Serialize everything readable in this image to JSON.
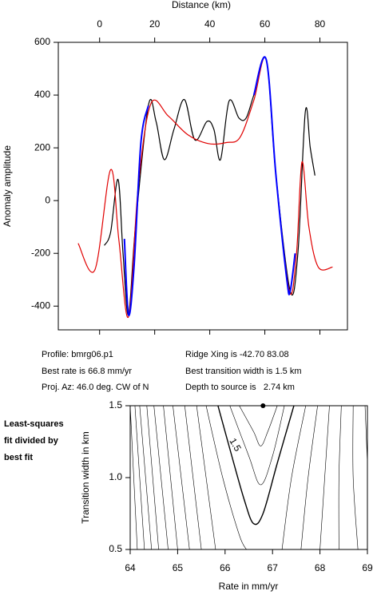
{
  "chart_data": [
    {
      "type": "line",
      "xlabel": "Distance (km)",
      "ylabel": "Anomaly amplitude",
      "xlim": [
        -15,
        90
      ],
      "xticks": [
        0,
        20,
        40,
        60,
        80
      ],
      "ylim": [
        -490,
        600
      ],
      "yticks": [
        -400,
        -200,
        0,
        200,
        400,
        600
      ],
      "series": [
        {
          "color": "#000000",
          "x": [
            1.7,
            4,
            6.7,
            8.5,
            10.5,
            13,
            17.7,
            20.5,
            23.5,
            27,
            30.8,
            34.6,
            39,
            41.5,
            43.9,
            47,
            50.6,
            53.2,
            56,
            60.5,
            64,
            69.2,
            72,
            74.7,
            76.5,
            78.2
          ],
          "values": [
            -170,
            -120,
            80,
            -200,
            -433,
            -100,
            360,
            300,
            155,
            270,
            383,
            230,
            300,
            270,
            155,
            377,
            313,
            313,
            400,
            535,
            100,
            -343,
            -200,
            337,
            200,
            95
          ]
        },
        {
          "color": "#e00000",
          "x": [
            -7.8,
            -1.7,
            4,
            7,
            10.5,
            14,
            18.6,
            25,
            32,
            39.5,
            46,
            51,
            56,
            60.5,
            64,
            68.9,
            71.5,
            73.5,
            76,
            79.4,
            84.6
          ],
          "values": [
            -162,
            -262,
            117,
            -150,
            -440,
            50,
            367,
            320,
            250,
            216,
            220,
            240,
            380,
            535,
            100,
            -343,
            -200,
            147,
            -100,
            -252,
            -252
          ]
        },
        {
          "color": "#0000ff",
          "x": [
            9,
            10.5,
            12.5,
            15,
            17.7,
            null,
            56,
            60.5,
            64,
            68,
            69.2,
            71
          ],
          "values": [
            -145,
            -433,
            -250,
            220,
            360,
            null,
            400,
            535,
            100,
            -300,
            -343,
            -200
          ]
        }
      ]
    },
    {
      "type": "contour",
      "xlabel": "Rate in mm/yr",
      "ylabel": "Transition width in km",
      "xlim": [
        64,
        69
      ],
      "xticks": [
        64,
        65,
        66,
        67,
        68,
        69
      ],
      "ylim": [
        0.5,
        1.5
      ],
      "yticks": [
        0.5,
        {
          "value": 1.0,
          "label": "1.0"
        },
        1.5
      ],
      "best": {
        "x": 66.8,
        "y": 1.5
      },
      "contours": [
        {
          "x": [
            64.0,
            64.15
          ],
          "values": [
            1.5,
            0.5
          ]
        },
        {
          "x": [
            64.1,
            64.3
          ],
          "values": [
            1.5,
            0.5
          ]
        },
        {
          "x": [
            64.2,
            64.45
          ],
          "values": [
            1.5,
            0.5
          ]
        },
        {
          "x": [
            64.35,
            64.6
          ],
          "values": [
            1.5,
            0.5
          ]
        },
        {
          "x": [
            64.5,
            64.8
          ],
          "values": [
            1.5,
            0.5
          ]
        },
        {
          "x": [
            64.7,
            65.0
          ],
          "values": [
            1.5,
            0.5
          ]
        },
        {
          "x": [
            64.9,
            65.25
          ],
          "values": [
            1.5,
            0.5
          ]
        },
        {
          "x": [
            65.15,
            65.5
          ],
          "values": [
            1.5,
            0.5
          ]
        },
        {
          "x": [
            65.4,
            65.8
          ],
          "values": [
            1.5,
            0.5
          ]
        },
        {
          "x": [
            65.6,
            65.95,
            66.3,
            66.45
          ],
          "values": [
            1.5,
            1.0,
            0.6,
            0.5
          ]
        },
        {
          "x": [
            65.85,
            66.1,
            66.4,
            66.6,
            66.8,
            67.1,
            67.45
          ],
          "values": [
            1.5,
            1.2,
            0.85,
            0.68,
            0.75,
            1.1,
            1.5
          ],
          "label": "1.5"
        },
        {
          "x": [
            66.1,
            66.5,
            66.75,
            67.0,
            67.25
          ],
          "values": [
            1.5,
            1.15,
            0.95,
            1.15,
            1.5
          ]
        },
        {
          "x": [
            66.3,
            66.6,
            66.75,
            66.9,
            67.1
          ],
          "values": [
            1.5,
            1.32,
            1.22,
            1.32,
            1.5
          ]
        },
        {
          "x": [
            67.7,
            67.4,
            67.2
          ],
          "values": [
            1.5,
            1.0,
            0.5
          ]
        },
        {
          "x": [
            67.95,
            67.75,
            67.6
          ],
          "values": [
            1.5,
            1.0,
            0.5
          ]
        },
        {
          "x": [
            68.2,
            68.1,
            68.0
          ],
          "values": [
            1.5,
            1.0,
            0.5
          ]
        },
        {
          "x": [
            68.45,
            68.4,
            68.4
          ],
          "values": [
            1.5,
            1.0,
            0.5
          ]
        },
        {
          "x": [
            68.7,
            68.7,
            68.8
          ],
          "values": [
            1.5,
            1.0,
            0.5
          ]
        },
        {
          "x": [
            68.95,
            69.0
          ],
          "values": [
            1.5,
            1.1
          ]
        }
      ]
    }
  ],
  "annotations": {
    "profile": "Profile: bmrg06.p1",
    "rate": "Best rate is 66.8 mm/yr",
    "az": "Proj. Az: 46.0 deg. CW of N",
    "ridge": "Ridge Xing is -42.70 83.08",
    "width": "Best transition width is 1.5 km",
    "depth": "Depth to source is   2.74 km",
    "note": [
      "Least-squares",
      "fit divided by",
      "best fit"
    ]
  }
}
